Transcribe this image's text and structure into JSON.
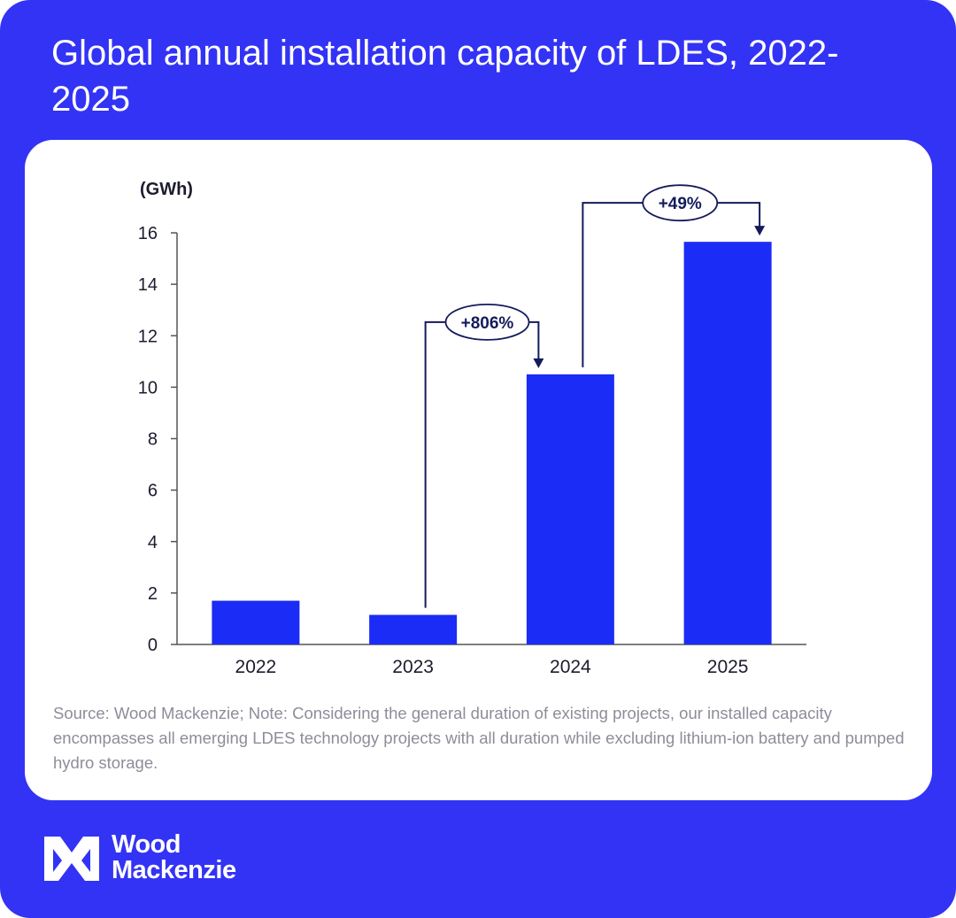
{
  "header": {
    "title": "Global annual installation capacity of LDES, 2022-2025"
  },
  "chart_data": {
    "type": "bar",
    "title": "Global annual installation capacity of LDES, 2022-2025",
    "ylabel": "(GWh)",
    "xlabel": "",
    "categories": [
      "2022",
      "2023",
      "2024",
      "2025"
    ],
    "values": [
      1.7,
      1.15,
      10.5,
      15.65
    ],
    "ylim": [
      0,
      16
    ],
    "yticks": [
      0,
      2,
      4,
      6,
      8,
      10,
      12,
      14,
      16
    ],
    "grid": false,
    "legend": "none",
    "bar_color": "#1a2cf6",
    "annotations": [
      {
        "label": "+806%",
        "from": "2023",
        "to": "2024"
      },
      {
        "label": "+49%",
        "from": "2024",
        "to": "2025"
      }
    ]
  },
  "footer": {
    "note": "Source: Wood Mackenzie; Note: Considering the general duration of existing projects, our installed capacity encompasses all emerging LDES technology projects with all duration while excluding lithium-ion battery and pumped hydro storage."
  },
  "brand": {
    "line1": "Wood",
    "line2": "Mackenzie",
    "logo_icon": "wood-mackenzie-logo-icon",
    "background_color": "#3333f5"
  }
}
